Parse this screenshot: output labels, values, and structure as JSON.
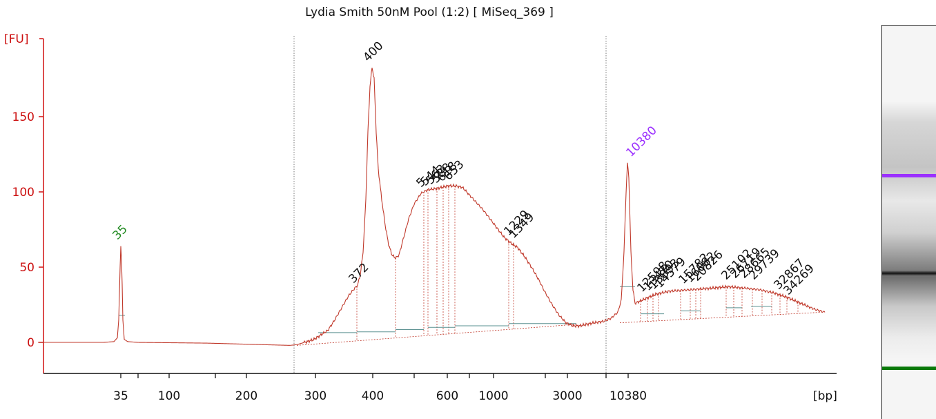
{
  "chart_data": {
    "type": "line",
    "title": "Lydia Smith 50nM Pool (1:2)  [ MiSeq_369 ]",
    "ylabel": "[FU]",
    "xlabel": "[bp]",
    "ylim": [
      -20,
      190
    ],
    "yticks": [
      0,
      50,
      100,
      150
    ],
    "xticks": [
      "35",
      "100",
      "200",
      "300",
      "400",
      "600",
      "1000",
      "3000",
      "10380"
    ],
    "grid": false,
    "colors": {
      "trace": "#c0392b",
      "axis": "#d42020",
      "lower_marker": "#228B22",
      "upper_marker": "#9b30ff",
      "baseline": "#5a9090"
    },
    "markers": [
      {
        "label": "35",
        "kind": "lower",
        "bp": 35,
        "fu": 64
      },
      {
        "label": "10380",
        "kind": "upper",
        "bp": 10380,
        "fu": 119
      }
    ],
    "peaks": [
      {
        "label": "400",
        "bp": 400,
        "fu": 183
      },
      {
        "label": "372",
        "bp": 372,
        "fu": 37
      }
    ],
    "peak_labels": [
      {
        "label": "5",
        "fu": 101
      },
      {
        "label": "544",
        "fu": 102
      },
      {
        "label": "563",
        "fu": 103
      },
      {
        "label": "588",
        "fu": 103
      },
      {
        "label": "618",
        "fu": 104
      },
      {
        "label": "653",
        "fu": 104
      },
      {
        "label": "1229",
        "fu": 67
      },
      {
        "label": "1349",
        "fu": 65
      },
      {
        "label": "12598",
        "fu": 27
      },
      {
        "label": "13470",
        "fu": 28
      },
      {
        "label": "13893",
        "fu": 29
      },
      {
        "label": "14579",
        "fu": 30
      },
      {
        "label": "15782",
        "fu": 33
      },
      {
        "label": "16082",
        "fu": 34
      },
      {
        "label": "20826",
        "fu": 35
      },
      {
        "label": "25102",
        "fu": 36
      },
      {
        "label": "26719",
        "fu": 37
      },
      {
        "label": "28665",
        "fu": 37
      },
      {
        "label": "29739",
        "fu": 36
      },
      {
        "label": "32867",
        "fu": 33
      },
      {
        "label": "34269",
        "fu": 31
      }
    ]
  },
  "gel_lane": {
    "upper_marker_color": "#9b30ff",
    "lower_marker_color": "#0a7a0a"
  }
}
